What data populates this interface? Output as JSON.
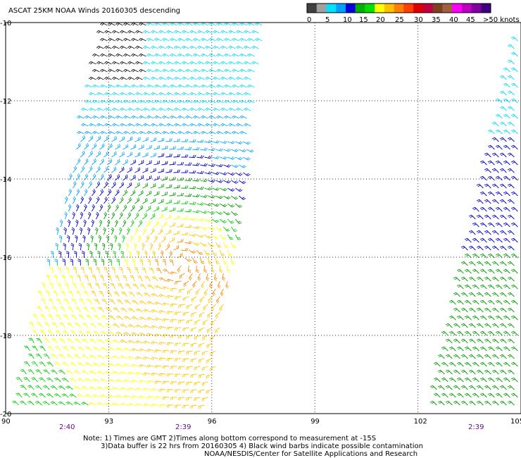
{
  "title": "ASCAT 25KM NOAA Winds 20160305 descending",
  "legend": {
    "ticks": [
      "0",
      "5",
      "10",
      "15",
      "20",
      "25",
      "30",
      "35",
      "40",
      "45",
      ">50 knots"
    ],
    "colors": [
      "#404040",
      "#a0a0a0",
      "#00e0ff",
      "#00a0ff",
      "#0000e0",
      "#00b000",
      "#00e000",
      "#ffff00",
      "#ffc000",
      "#ff8000",
      "#ff4000",
      "#e00000",
      "#c00040",
      "#804020",
      "#a06040",
      "#ff00ff",
      "#c000c0",
      "#8000a0",
      "#400080"
    ]
  },
  "lat_labels": [
    "-10",
    "-12",
    "-14",
    "-16",
    "-18",
    "-20"
  ],
  "lon_labels": [
    "90",
    "93",
    "96",
    "99",
    "102",
    "105"
  ],
  "pass_times": [
    "2:40",
    "2:39",
    "2:39"
  ],
  "notes": {
    "line1": "Note: 1) Times are GMT 2)Times along bottom correspond to measurement at -15S",
    "line2": "3)Data buffer is 22 hrs from 20160305 4) Black wind barbs indicate possible contamination",
    "line3": "NOAA/NESDIS/Center for Satellite Applications and Research"
  },
  "map_extent": {
    "lon": [
      90,
      105
    ],
    "lat": [
      -20,
      -10
    ]
  },
  "swaths": [
    {
      "name": "west-pass",
      "time": "2:40"
    },
    {
      "name": "east-pass",
      "time": "2:39"
    }
  ]
}
